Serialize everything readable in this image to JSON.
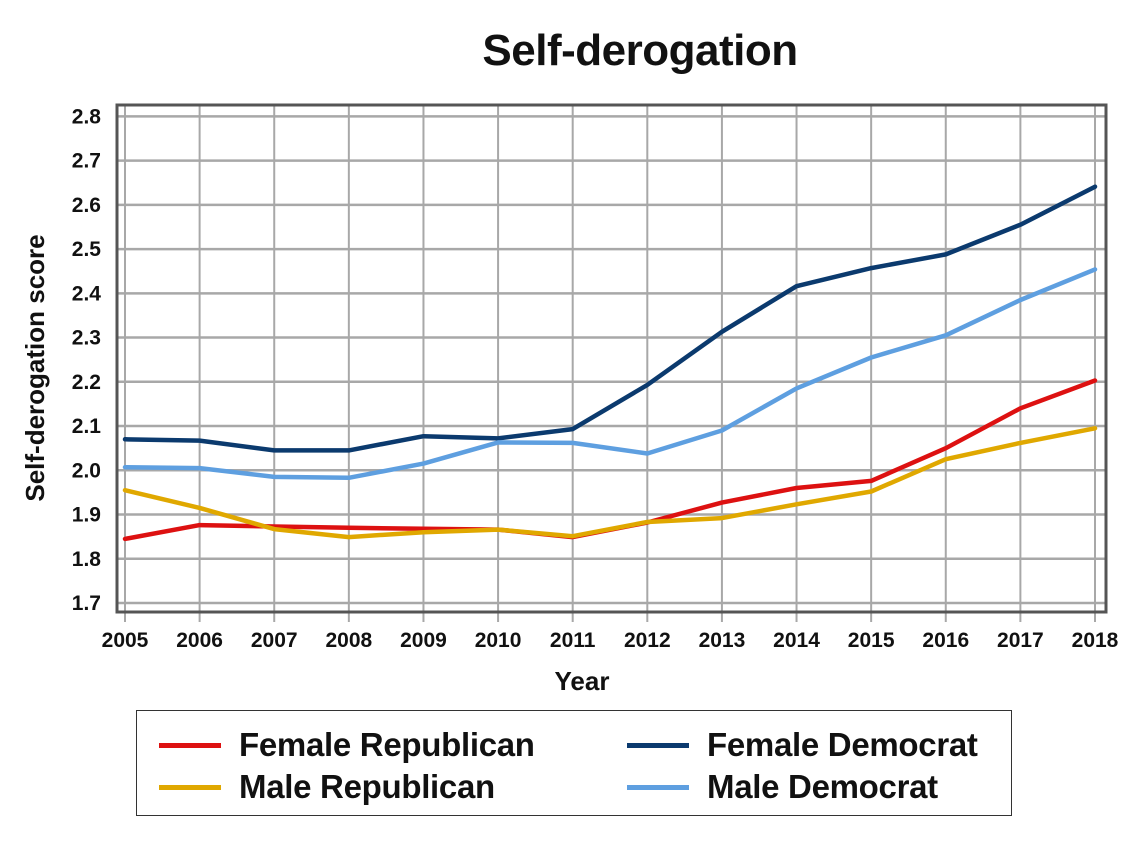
{
  "chart_data": {
    "type": "line",
    "title": "Self-derogation",
    "xlabel": "Year",
    "ylabel": "Self-derogation score",
    "categories": [
      "2005",
      "2006",
      "2007",
      "2008",
      "2009",
      "2010",
      "2011",
      "2012",
      "2013",
      "2014",
      "2015",
      "2016",
      "2017",
      "2018"
    ],
    "y_ticks": [
      "1.7",
      "1.8",
      "1.9",
      "2.0",
      "2.1",
      "2.2",
      "2.3",
      "2.4",
      "2.5",
      "2.6",
      "2.7",
      "2.8"
    ],
    "ylim": [
      1.68,
      2.81
    ],
    "grid": true,
    "legend_position": "bottom",
    "series": [
      {
        "name": "Female Republican",
        "color": "#dd1111",
        "values": [
          1.845,
          1.876,
          1.873,
          1.87,
          1.868,
          1.866,
          1.849,
          1.882,
          1.927,
          1.96,
          1.976,
          2.05,
          2.14,
          2.203
        ]
      },
      {
        "name": "Female Democrat",
        "color": "#0b3a6e",
        "values": [
          2.07,
          2.067,
          2.045,
          2.045,
          2.077,
          2.072,
          2.093,
          2.193,
          2.313,
          2.416,
          2.457,
          2.488,
          2.555,
          2.641
        ]
      },
      {
        "name": "Male Republican",
        "color": "#e0a800",
        "values": [
          1.955,
          1.915,
          1.867,
          1.849,
          1.86,
          1.866,
          1.851,
          1.883,
          1.892,
          1.923,
          1.952,
          2.025,
          2.062,
          2.095
        ]
      },
      {
        "name": "Male Democrat",
        "color": "#5e9fe0",
        "values": [
          2.007,
          2.005,
          1.985,
          1.983,
          2.015,
          2.063,
          2.062,
          2.038,
          2.09,
          2.185,
          2.255,
          2.305,
          2.385,
          2.454
        ]
      }
    ]
  }
}
